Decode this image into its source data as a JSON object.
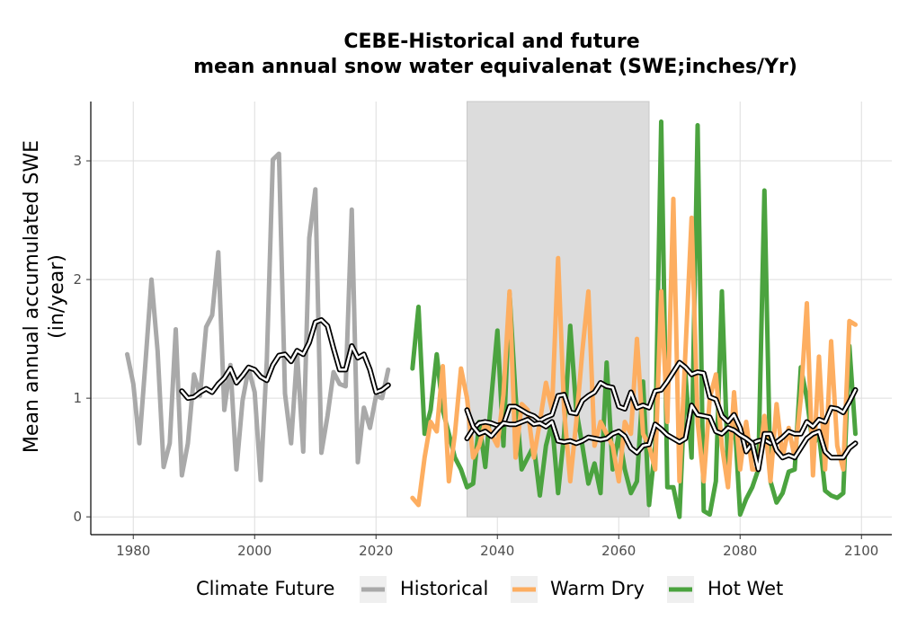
{
  "chart_data": {
    "type": "line",
    "title_line1": "CEBE-Historical and future",
    "title_line2": "mean annual snow water equivalenat (SWE;inches/Yr)",
    "xlabel": "",
    "ylabel_line1": "Mean annual accumulated SWE",
    "ylabel_line2": "(in/year)",
    "xlim": [
      1973,
      2105
    ],
    "ylim": [
      -0.15,
      3.5
    ],
    "xticks": [
      1980,
      2000,
      2020,
      2040,
      2060,
      2080,
      2100
    ],
    "yticks": [
      0,
      1,
      2,
      3
    ],
    "grid": true,
    "shaded_period": [
      2035,
      2065
    ],
    "legend": {
      "title": "Climate Future",
      "placement": "bottom",
      "entries": [
        "Historical",
        "Warm Dry",
        "Hot Wet"
      ]
    },
    "series": [
      {
        "name": "Historical",
        "color": "#a9a9a9",
        "x": [
          1979,
          1980,
          1981,
          1982,
          1983,
          1984,
          1985,
          1986,
          1987,
          1988,
          1989,
          1990,
          1991,
          1992,
          1993,
          1994,
          1995,
          1996,
          1997,
          1998,
          1999,
          2000,
          2001,
          2002,
          2003,
          2004,
          2005,
          2006,
          2007,
          2008,
          2009,
          2010,
          2011,
          2012,
          2013,
          2014,
          2015,
          2016,
          2017,
          2018,
          2019,
          2020,
          2021,
          2022
        ],
        "values": [
          1.37,
          1.12,
          0.62,
          1.3,
          2.0,
          1.4,
          0.42,
          0.62,
          1.58,
          0.35,
          0.62,
          1.2,
          1.02,
          1.6,
          1.7,
          2.23,
          0.9,
          1.28,
          0.4,
          0.98,
          1.25,
          1.05,
          0.31,
          1.32,
          3.01,
          3.06,
          1.04,
          0.62,
          1.38,
          0.55,
          2.35,
          2.76,
          0.54,
          0.85,
          1.22,
          1.12,
          1.1,
          2.59,
          0.46,
          0.92,
          0.75,
          1.02,
          1.0,
          1.24
        ]
      },
      {
        "name": "Warm Dry",
        "color": "#fdae61",
        "x": [
          2026,
          2027,
          2028,
          2029,
          2030,
          2031,
          2032,
          2033,
          2034,
          2035,
          2036,
          2037,
          2038,
          2039,
          2040,
          2041,
          2042,
          2043,
          2044,
          2045,
          2046,
          2047,
          2048,
          2049,
          2050,
          2051,
          2052,
          2053,
          2054,
          2055,
          2056,
          2057,
          2058,
          2059,
          2060,
          2061,
          2062,
          2063,
          2064,
          2065,
          2066,
          2067,
          2068,
          2069,
          2070,
          2071,
          2072,
          2073,
          2074,
          2075,
          2076,
          2077,
          2078,
          2079,
          2080,
          2081,
          2082,
          2083,
          2084,
          2085,
          2086,
          2087,
          2088,
          2089,
          2090,
          2091,
          2092,
          2093,
          2094,
          2095,
          2096,
          2097,
          2098,
          2099
        ],
        "values": [
          0.16,
          0.1,
          0.5,
          0.8,
          0.72,
          1.27,
          0.3,
          0.7,
          1.25,
          1.0,
          0.5,
          0.6,
          0.8,
          0.7,
          0.6,
          1.03,
          1.9,
          0.5,
          0.95,
          0.9,
          0.5,
          0.8,
          1.13,
          0.9,
          2.18,
          0.9,
          0.3,
          0.8,
          1.4,
          1.9,
          0.6,
          0.8,
          0.7,
          0.6,
          0.3,
          0.8,
          0.7,
          1.5,
          0.7,
          0.6,
          0.4,
          1.9,
          0.8,
          2.68,
          0.3,
          1.4,
          2.52,
          0.8,
          0.3,
          1.0,
          1.2,
          0.6,
          0.25,
          1.05,
          0.4,
          0.8,
          0.4,
          0.4,
          0.85,
          0.3,
          0.95,
          0.5,
          0.75,
          0.5,
          1.0,
          1.8,
          0.35,
          1.35,
          0.4,
          1.48,
          0.6,
          0.4,
          1.65,
          1.62
        ]
      },
      {
        "name": "Hot Wet",
        "color": "#4ba33f",
        "x": [
          2026,
          2027,
          2028,
          2029,
          2030,
          2031,
          2032,
          2033,
          2034,
          2035,
          2036,
          2037,
          2038,
          2039,
          2040,
          2041,
          2042,
          2043,
          2044,
          2045,
          2046,
          2047,
          2048,
          2049,
          2050,
          2051,
          2052,
          2053,
          2054,
          2055,
          2056,
          2057,
          2058,
          2059,
          2060,
          2061,
          2062,
          2063,
          2064,
          2065,
          2066,
          2067,
          2068,
          2069,
          2070,
          2071,
          2072,
          2073,
          2074,
          2075,
          2076,
          2077,
          2078,
          2079,
          2080,
          2081,
          2082,
          2083,
          2084,
          2085,
          2086,
          2087,
          2088,
          2089,
          2090,
          2091,
          2092,
          2093,
          2094,
          2095,
          2096,
          2097,
          2098,
          2099
        ],
        "values": [
          1.25,
          1.77,
          0.7,
          0.9,
          1.37,
          0.9,
          0.7,
          0.5,
          0.4,
          0.25,
          0.28,
          0.8,
          0.42,
          1.0,
          1.57,
          0.6,
          1.88,
          1.02,
          0.4,
          0.5,
          0.6,
          0.18,
          0.6,
          0.8,
          0.2,
          0.7,
          1.61,
          0.9,
          0.6,
          0.28,
          0.45,
          0.2,
          1.3,
          0.4,
          0.7,
          0.4,
          0.2,
          0.3,
          1.14,
          0.1,
          0.6,
          3.33,
          0.25,
          0.25,
          0.0,
          1.2,
          0.5,
          3.3,
          0.05,
          0.02,
          0.3,
          1.9,
          0.4,
          0.9,
          0.02,
          0.15,
          0.25,
          0.4,
          2.75,
          0.3,
          0.12,
          0.2,
          0.38,
          0.4,
          1.26,
          1.0,
          0.6,
          0.7,
          0.22,
          0.18,
          0.16,
          0.2,
          1.44,
          0.7
        ]
      }
    ],
    "rolling_mean_series": [
      {
        "base": "Historical",
        "x": [
          1988,
          1989,
          1990,
          1991,
          1992,
          1993,
          1994,
          1995,
          1996,
          1997,
          1998,
          1999,
          2000,
          2001,
          2002,
          2003,
          2004,
          2005,
          2006,
          2007,
          2008,
          2009,
          2010,
          2011,
          2012,
          2013,
          2014,
          2015,
          2016,
          2017,
          2018,
          2019,
          2020,
          2021,
          2022
        ],
        "values": [
          1.06,
          1.0,
          1.01,
          1.05,
          1.08,
          1.05,
          1.12,
          1.17,
          1.25,
          1.13,
          1.19,
          1.26,
          1.24,
          1.18,
          1.15,
          1.28,
          1.36,
          1.37,
          1.31,
          1.4,
          1.37,
          1.47,
          1.64,
          1.66,
          1.61,
          1.42,
          1.24,
          1.24,
          1.44,
          1.34,
          1.37,
          1.24,
          1.05,
          1.07,
          1.11
        ]
      },
      {
        "base": "Warm Dry",
        "x": [
          2035,
          2036,
          2037,
          2038,
          2039,
          2040,
          2041,
          2042,
          2043,
          2044,
          2045,
          2046,
          2047,
          2048,
          2049,
          2050,
          2051,
          2052,
          2053,
          2054,
          2055,
          2056,
          2057,
          2058,
          2059,
          2060,
          2061,
          2062,
          2063,
          2064,
          2065,
          2066,
          2067,
          2068,
          2069,
          2070,
          2071,
          2072,
          2073,
          2074,
          2075,
          2076,
          2077,
          2078,
          2079,
          2080,
          2081,
          2082,
          2083,
          2084,
          2085,
          2086,
          2087,
          2088,
          2089,
          2090,
          2091,
          2092,
          2093,
          2094,
          2095,
          2096,
          2097,
          2098,
          2099
        ],
        "values": [
          0.66,
          0.74,
          0.79,
          0.8,
          0.79,
          0.77,
          0.78,
          0.93,
          0.93,
          0.9,
          0.87,
          0.85,
          0.81,
          0.84,
          0.86,
          1.02,
          1.03,
          0.88,
          0.87,
          0.98,
          1.02,
          1.05,
          1.13,
          1.1,
          1.09,
          0.93,
          0.91,
          1.05,
          0.92,
          0.94,
          0.92,
          1.06,
          1.07,
          1.14,
          1.22,
          1.3,
          1.26,
          1.2,
          1.22,
          1.21,
          1.01,
          0.99,
          0.85,
          0.8,
          0.86,
          0.75,
          0.55,
          0.62,
          0.64,
          0.65,
          0.62,
          0.63,
          0.67,
          0.72,
          0.7,
          0.7,
          0.8,
          0.76,
          0.82,
          0.8,
          0.92,
          0.91,
          0.88,
          0.97,
          1.07
        ]
      },
      {
        "base": "Hot Wet",
        "x": [
          2035,
          2036,
          2037,
          2038,
          2039,
          2040,
          2041,
          2042,
          2043,
          2044,
          2045,
          2046,
          2047,
          2048,
          2049,
          2050,
          2051,
          2052,
          2053,
          2054,
          2055,
          2056,
          2057,
          2058,
          2059,
          2060,
          2061,
          2062,
          2063,
          2064,
          2065,
          2066,
          2067,
          2068,
          2069,
          2070,
          2071,
          2072,
          2073,
          2074,
          2075,
          2076,
          2077,
          2078,
          2079,
          2080,
          2081,
          2082,
          2083,
          2084,
          2085,
          2086,
          2087,
          2088,
          2089,
          2090,
          2091,
          2092,
          2093,
          2094,
          2095,
          2096,
          2097,
          2098,
          2099
        ],
        "values": [
          0.9,
          0.76,
          0.7,
          0.72,
          0.68,
          0.74,
          0.79,
          0.78,
          0.78,
          0.8,
          0.82,
          0.78,
          0.79,
          0.76,
          0.8,
          0.64,
          0.63,
          0.64,
          0.62,
          0.64,
          0.67,
          0.66,
          0.65,
          0.66,
          0.7,
          0.72,
          0.68,
          0.58,
          0.54,
          0.6,
          0.61,
          0.78,
          0.74,
          0.69,
          0.66,
          0.63,
          0.66,
          0.94,
          0.86,
          0.85,
          0.84,
          0.72,
          0.7,
          0.75,
          0.73,
          0.69,
          0.66,
          0.62,
          0.4,
          0.7,
          0.7,
          0.56,
          0.5,
          0.52,
          0.5,
          0.58,
          0.66,
          0.7,
          0.72,
          0.55,
          0.5,
          0.5,
          0.5,
          0.58,
          0.62
        ]
      }
    ]
  }
}
